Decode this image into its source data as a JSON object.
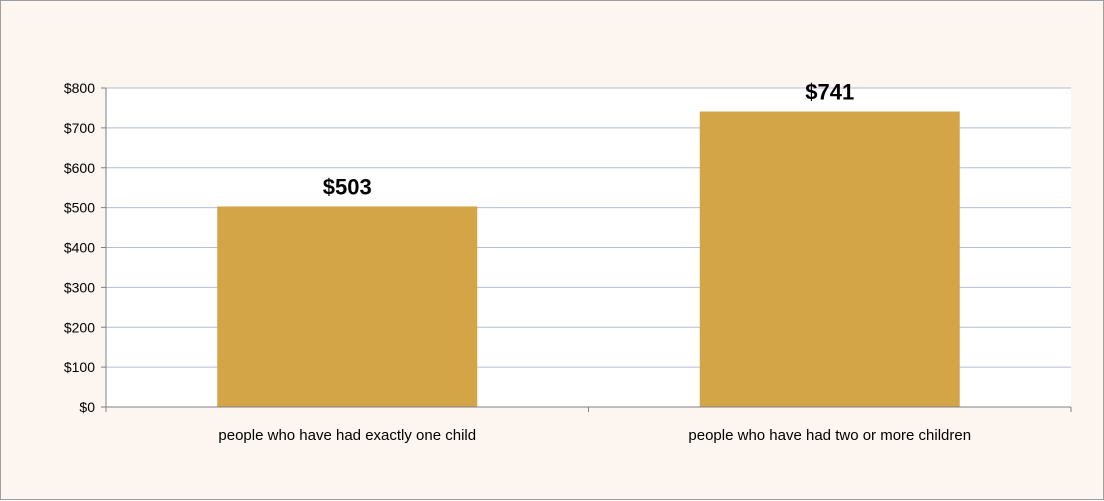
{
  "chart_data": {
    "type": "bar",
    "title": "",
    "xlabel": "",
    "ylabel": "",
    "categories": [
      "people who have had exactly one child",
      "people who have had two or more children"
    ],
    "values": [
      503,
      741
    ],
    "data_labels": [
      "$503",
      "$741"
    ],
    "ylim": [
      0,
      800
    ],
    "y_ticks": [
      0,
      100,
      200,
      300,
      400,
      500,
      600,
      700,
      800
    ],
    "y_tick_labels": [
      "$0",
      "$100",
      "$200",
      "$300",
      "$400",
      "$500",
      "$600",
      "$700",
      "$800"
    ],
    "grid": true,
    "legend": "none"
  },
  "colors": {
    "bar": "#d4a546",
    "background": "#fdf5ef",
    "plot_area": "#ffffff",
    "gridline": "#b4bcd6",
    "axis": "#808080"
  }
}
